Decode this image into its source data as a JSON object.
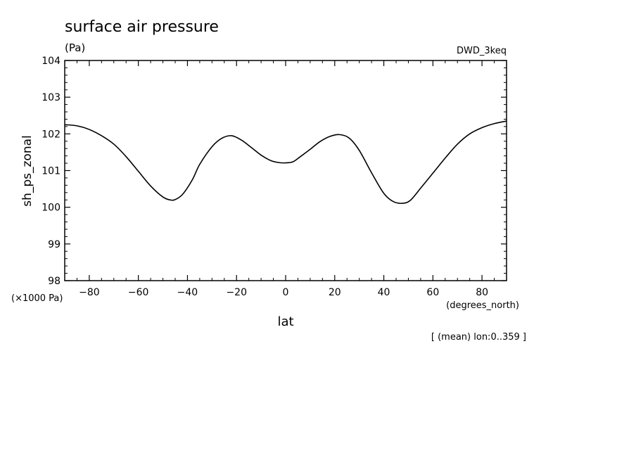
{
  "chart_data": {
    "type": "line",
    "title": "surface air pressure",
    "subtitle": "(Pa)",
    "dataset": "DWD_3keq",
    "xlabel": "lat",
    "x_units": "(degrees_north)",
    "ylabel": "sh_ps_zonal",
    "y_multiplier": "(×1000 Pa)",
    "footnote": "[ (mean) lon:0..359 ]",
    "xlim": [
      -90,
      90
    ],
    "ylim": [
      98,
      104
    ],
    "x_ticks": [
      -80,
      -60,
      -40,
      -20,
      0,
      20,
      40,
      60,
      80
    ],
    "y_ticks": [
      98,
      99,
      100,
      101,
      102,
      103,
      104
    ],
    "grid": false,
    "series": [
      {
        "x": [
          -90,
          -85,
          -80,
          -75,
          -70,
          -65,
          -60,
          -55,
          -50,
          -47,
          -45,
          -42,
          -38,
          -35,
          -30,
          -26,
          -22,
          -18,
          -14,
          -10,
          -6,
          -3,
          0,
          3,
          6,
          10,
          14,
          18,
          22,
          26,
          30,
          35,
          40,
          44,
          48,
          51,
          55,
          60,
          65,
          70,
          75,
          80,
          85,
          90
        ],
        "values": [
          102.25,
          102.22,
          102.12,
          101.95,
          101.72,
          101.38,
          100.98,
          100.58,
          100.28,
          100.2,
          100.21,
          100.35,
          100.75,
          101.17,
          101.65,
          101.88,
          101.95,
          101.83,
          101.63,
          101.42,
          101.27,
          101.22,
          101.21,
          101.24,
          101.38,
          101.58,
          101.79,
          101.93,
          101.98,
          101.88,
          101.55,
          100.94,
          100.38,
          100.15,
          100.11,
          100.2,
          100.52,
          100.93,
          101.34,
          101.72,
          102.0,
          102.17,
          102.28,
          102.35
        ]
      }
    ]
  }
}
